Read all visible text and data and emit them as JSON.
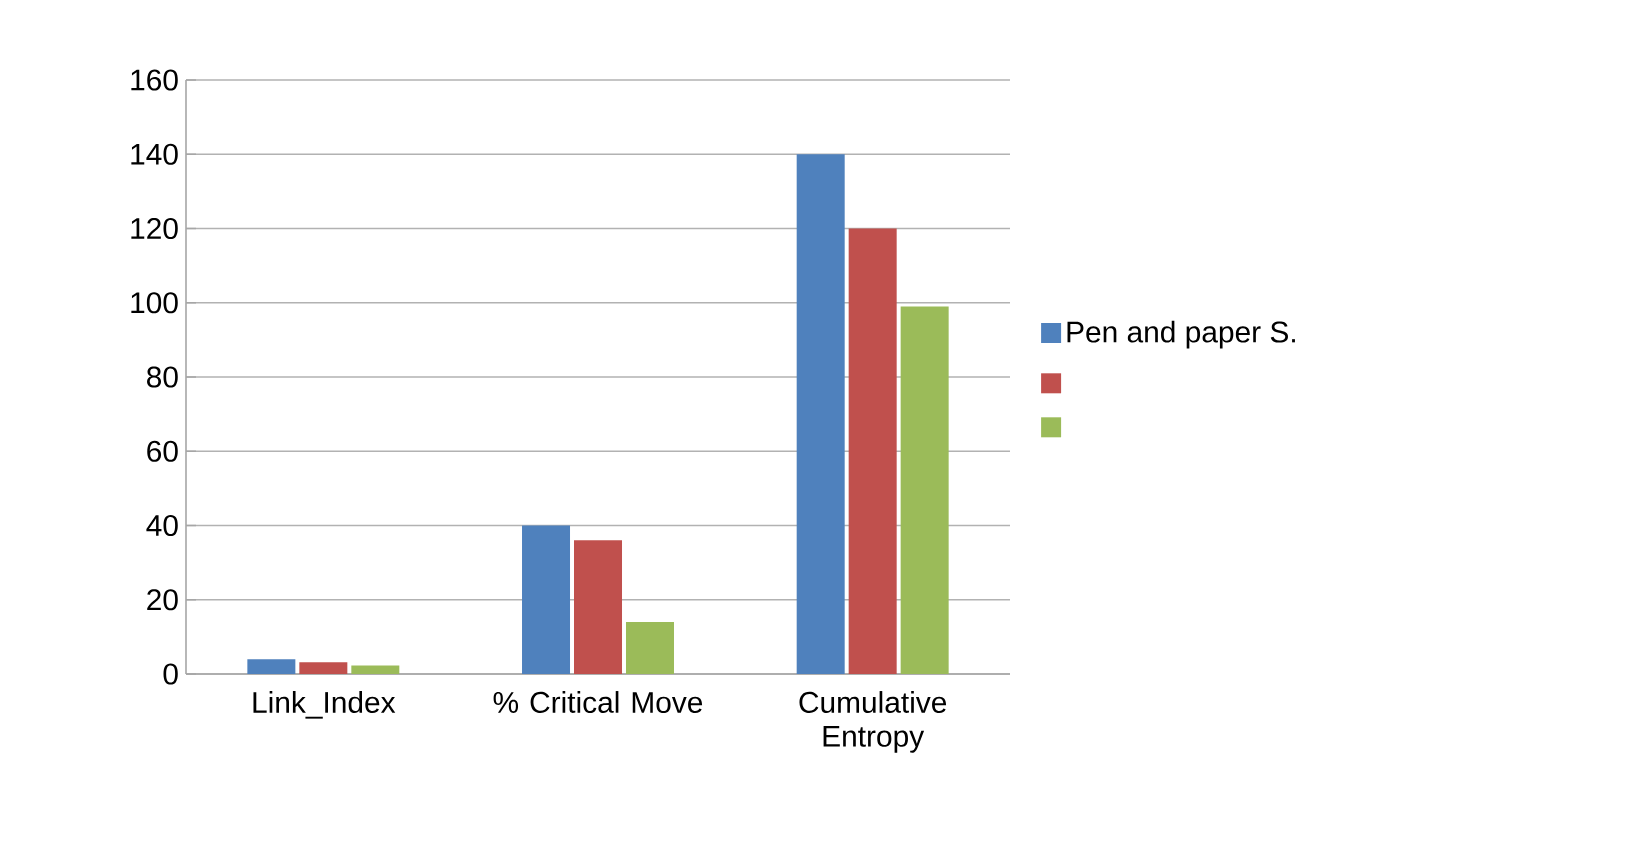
{
  "chart_data": {
    "type": "bar",
    "categories": [
      "Link_Index",
      "% Critical Move",
      "Cumulative Entropy"
    ],
    "series": [
      {
        "name": "Pen and paper S.",
        "color": "#4f81bd",
        "values": [
          4,
          40,
          140
        ]
      },
      {
        "color": "#c0504d",
        "values": [
          3.2,
          36,
          120
        ]
      },
      {
        "color": "#9bbb59",
        "values": [
          2.3,
          14,
          99
        ]
      }
    ],
    "ylim": [
      0,
      160
    ],
    "yticks": [
      0,
      20,
      40,
      60,
      80,
      100,
      120,
      140,
      160
    ],
    "grid": "y",
    "legend": "right"
  }
}
